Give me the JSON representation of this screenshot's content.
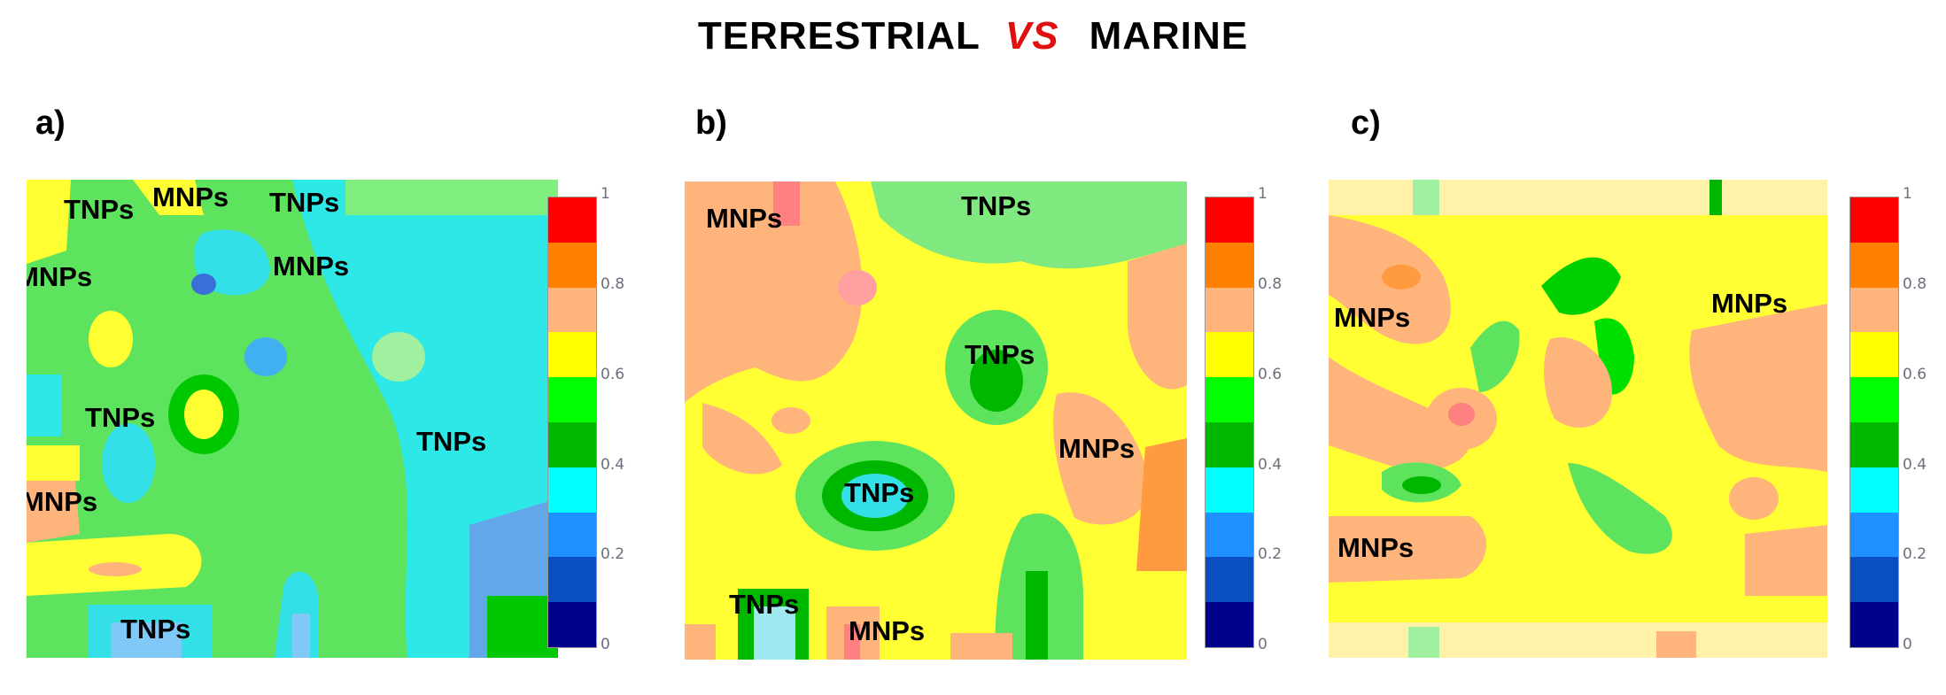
{
  "title": {
    "left": "TERRESTRIAL",
    "vs": "VS",
    "right": "MARINE"
  },
  "colors": {
    "levels": [
      "#00008b",
      "#0a4fc0",
      "#1e90ff",
      "#00ffff",
      "#00b700",
      "#00ff00",
      "#ffff00",
      "#ffb47c",
      "#ff7f00",
      "#ff0000"
    ],
    "vs_color": "#e01010"
  },
  "chart_data": [
    {
      "type": "heatmap",
      "panel": "a)",
      "colorbar": {
        "ticks": [
          "0",
          "0.2",
          "0.4",
          "0.6",
          "0.8",
          "1"
        ],
        "min": 0,
        "max": 1,
        "step": 0.1
      },
      "annotations": [
        "TNPs",
        "MNPs",
        "TNPs",
        "MNPs",
        "MNPs",
        "TNPs",
        "TNPs",
        "MNPs",
        "TNPs"
      ]
    },
    {
      "type": "heatmap",
      "panel": "b)",
      "colorbar": {
        "ticks": [
          "0",
          "0.2",
          "0.4",
          "0.6",
          "0.8",
          "1"
        ],
        "min": 0,
        "max": 1,
        "step": 0.1
      },
      "annotations": [
        "MNPs",
        "TNPs",
        "TNPs",
        "MNPs",
        "TNPs",
        "TNPs",
        "MNPs"
      ]
    },
    {
      "type": "heatmap",
      "panel": "c)",
      "colorbar": {
        "ticks": [
          "0",
          "0.2",
          "0.4",
          "0.6",
          "0.8",
          "1"
        ],
        "min": 0,
        "max": 1,
        "step": 0.1
      },
      "annotations": [
        "MNPs",
        "MNPs",
        "MNPs"
      ]
    }
  ]
}
